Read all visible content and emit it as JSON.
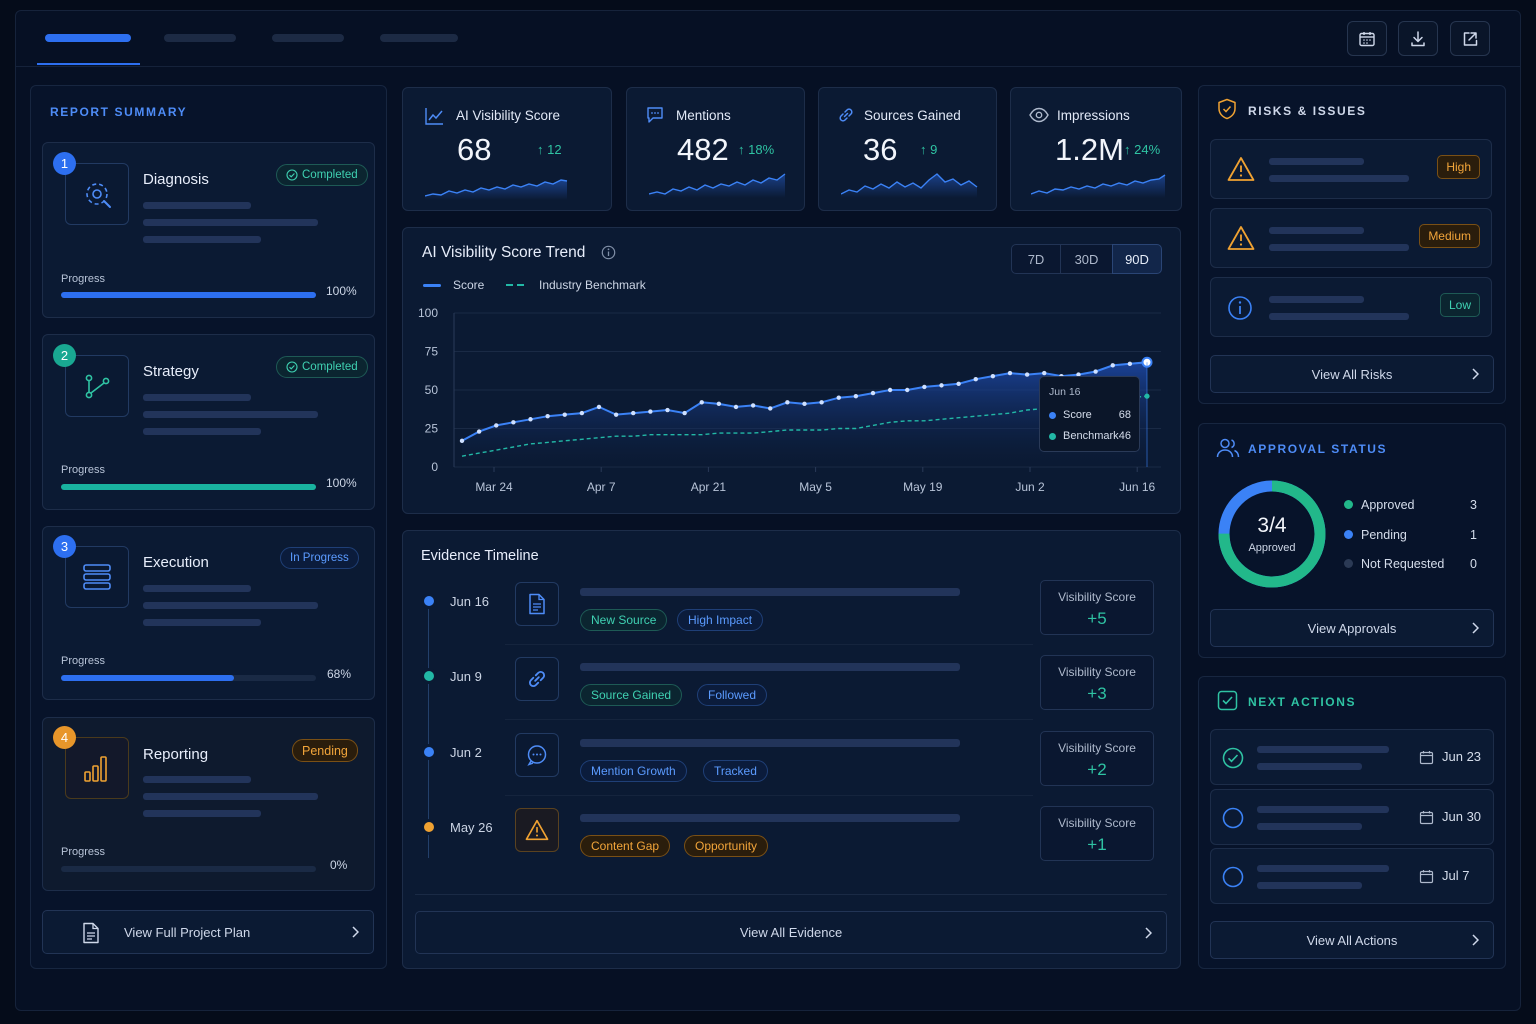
{
  "kpis": [
    {
      "label": "AI Visibility Score",
      "value": "68",
      "delta": "↑ 12",
      "icon": "trend-line-icon"
    },
    {
      "label": "Mentions",
      "value": "482",
      "delta": "↑ 18%",
      "icon": "chat-bubble-icon"
    },
    {
      "label": "Sources Gained",
      "value": "36",
      "delta": "↑ 9",
      "icon": "link-icon"
    },
    {
      "label": "Impressions",
      "value": "1.2M",
      "delta": "↑ 24%",
      "icon": "eye-icon"
    }
  ],
  "summary": {
    "title": "REPORT SUMMARY",
    "progress_label": "Progress",
    "steps": [
      {
        "num": "1",
        "title": "Diagnosis",
        "status": "Completed",
        "progress": 100,
        "progress_text": "100%",
        "icon": "target-icon"
      },
      {
        "num": "2",
        "title": "Strategy",
        "status": "Completed",
        "progress": 100,
        "progress_text": "100%",
        "icon": "branch-icon"
      },
      {
        "num": "3",
        "title": "Execution",
        "status": "In Progress",
        "progress": 68,
        "progress_text": "68%",
        "icon": "server-icon"
      },
      {
        "num": "4",
        "title": "Reporting",
        "status": "Pending",
        "progress": 0,
        "progress_text": "0%",
        "icon": "bar-chart-icon"
      }
    ],
    "view_plan": "View Full Project Plan"
  },
  "trend": {
    "title": "AI Visibility Score Trend",
    "ranges": [
      "7D",
      "30D",
      "90D"
    ],
    "selected_range": "90D",
    "legend_score": "Score",
    "legend_benchmark": "Industry Benchmark",
    "tooltip_date": "Jun 16",
    "tooltip_score_label": "Score",
    "tooltip_score_value": "68",
    "tooltip_bench_label": "Benchmark",
    "tooltip_bench_value": "46"
  },
  "chart_data": {
    "type": "line",
    "title": "AI Visibility Score Trend",
    "x_ticks": [
      "Mar 24",
      "Apr 7",
      "Apr 21",
      "May 5",
      "May 19",
      "Jun 2",
      "Jun 16"
    ],
    "y_ticks": [
      0,
      25,
      50,
      75,
      100
    ],
    "ylim": [
      0,
      100
    ],
    "series": [
      {
        "name": "Score",
        "color": "#3b82f6",
        "values": [
          17,
          23,
          27,
          29,
          31,
          33,
          34,
          35,
          39,
          34,
          35,
          36,
          37,
          35,
          42,
          41,
          39,
          40,
          38,
          42,
          41,
          42,
          45,
          46,
          48,
          50,
          50,
          52,
          53,
          54,
          57,
          59,
          61,
          60,
          61,
          59,
          60,
          62,
          66,
          67,
          68
        ]
      },
      {
        "name": "Industry Benchmark",
        "color": "#22b8a6",
        "values": [
          7,
          9,
          11,
          13,
          15,
          16,
          17,
          18,
          19,
          20,
          20,
          21,
          21,
          21,
          21,
          22,
          22,
          22,
          23,
          24,
          24,
          24,
          25,
          25,
          27,
          29,
          30,
          30,
          31,
          32,
          33,
          34,
          35,
          37,
          38,
          39,
          40,
          42,
          43,
          45,
          46
        ]
      }
    ],
    "grid": true,
    "legend": "top-left"
  },
  "evidence": {
    "title": "Evidence Timeline",
    "items": [
      {
        "date": "Jun 16",
        "tags": [
          "New Source",
          "High Impact"
        ],
        "score_label": "Visibility Score",
        "score": "+5",
        "icon": "document-icon",
        "dot": "#3b82f6"
      },
      {
        "date": "Jun 9",
        "tags": [
          "Source Gained",
          "Followed"
        ],
        "score_label": "Visibility Score",
        "score": "+3",
        "icon": "link-icon",
        "dot": "#22b8a6"
      },
      {
        "date": "Jun 2",
        "tags": [
          "Mention Growth",
          "Tracked"
        ],
        "score_label": "Visibility Score",
        "score": "+2",
        "icon": "chat-bubble-icon",
        "dot": "#3b82f6"
      },
      {
        "date": "May 26",
        "tags": [
          "Content Gap",
          "Opportunity"
        ],
        "score_label": "Visibility Score",
        "score": "+1",
        "icon": "warning-icon",
        "dot": "#f0a232"
      }
    ],
    "view_all": "View All Evidence"
  },
  "risks": {
    "title": "RISKS & ISSUES",
    "items": [
      {
        "level": "High",
        "icon": "warning-icon"
      },
      {
        "level": "Medium",
        "icon": "warning-icon"
      },
      {
        "level": "Low",
        "icon": "info-icon"
      }
    ],
    "view_all": "View All Risks"
  },
  "approval": {
    "title": "APPROVAL STATUS",
    "ratio": "3/4",
    "ratio_label": "Approved",
    "approved_fraction": 0.75,
    "rows": [
      {
        "label": "Approved",
        "count": "3",
        "color": "#22b88a"
      },
      {
        "label": "Pending",
        "count": "1",
        "color": "#3b82f6"
      },
      {
        "label": "Not Requested",
        "count": "0",
        "color": "#2b3a55"
      }
    ],
    "view_all": "View Approvals"
  },
  "actions": {
    "title": "NEXT ACTIONS",
    "items": [
      {
        "date": "Jun 23",
        "done": true
      },
      {
        "date": "Jun 30",
        "done": false
      },
      {
        "date": "Jul 7",
        "done": false
      }
    ],
    "view_all": "View All Actions"
  },
  "colors": {
    "accent": "#2d6ff0",
    "teal": "#22b8a6",
    "orange": "#f0a232",
    "bg": "#061024"
  }
}
